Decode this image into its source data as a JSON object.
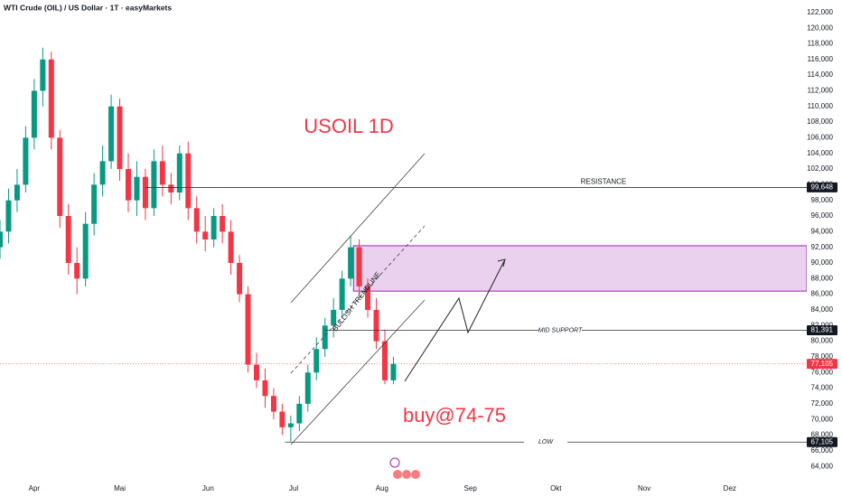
{
  "chart_data": {
    "type": "candlestick",
    "header": "WTI Crude (OIL) / US Dollar · 1T · easyMarkets",
    "annotations": [
      "USOIL 1D",
      "buy@74-75",
      "BULLISH TRENDLINE"
    ],
    "up_color": "#089981",
    "down_color": "#f23645",
    "x": [
      79,
      82,
      85,
      88,
      91,
      94,
      97,
      100,
      103,
      106,
      109,
      112,
      115,
      118,
      121,
      124,
      127,
      130,
      133,
      136,
      139,
      142,
      145,
      148,
      151,
      154,
      157,
      160,
      163,
      166,
      169,
      172,
      175,
      178,
      181,
      184,
      187,
      190,
      193,
      196,
      199,
      202,
      205,
      208,
      211,
      214,
      217
    ],
    "open": [
      92000,
      94000,
      98000,
      100000,
      106000,
      112000,
      116000,
      106000,
      96000,
      90000,
      88000,
      95000,
      100000,
      103000,
      110000,
      102000,
      98000,
      101000,
      97000,
      103000,
      100000,
      99000,
      104000,
      97000,
      94000,
      93000,
      96000,
      94000,
      90000,
      86000,
      77000,
      75000,
      73000,
      71000,
      69000,
      69500,
      72000,
      76000,
      79000,
      82000,
      84000,
      88000,
      92000,
      87000,
      84000,
      80000,
      75000
    ],
    "high": [
      95500,
      99500,
      102000,
      107500,
      113500,
      117500,
      117000,
      107000,
      97500,
      92000,
      96500,
      101500,
      105000,
      111500,
      111000,
      104000,
      103000,
      102000,
      104500,
      105000,
      101500,
      105000,
      105500,
      98500,
      96000,
      97000,
      97500,
      95500,
      91000,
      87000,
      78500,
      76500,
      74000,
      72000,
      70500,
      73000,
      77000,
      80500,
      83000,
      85500,
      89000,
      93500,
      93000,
      88000,
      85500,
      81500,
      78000
    ],
    "low": [
      90500,
      92500,
      96500,
      99000,
      104500,
      110000,
      104500,
      94500,
      88500,
      86000,
      87000,
      93500,
      98500,
      102000,
      100500,
      96500,
      96000,
      95500,
      96000,
      98500,
      97500,
      98000,
      95500,
      92500,
      91500,
      92000,
      92500,
      88500,
      85000,
      76000,
      74000,
      71500,
      70000,
      68000,
      67200,
      68500,
      71000,
      75000,
      78000,
      80500,
      83000,
      87000,
      86000,
      83000,
      79000,
      74500,
      74500
    ],
    "close": [
      94000,
      98000,
      100000,
      106000,
      112000,
      116000,
      106000,
      96000,
      90000,
      88000,
      95000,
      100000,
      103000,
      110000,
      102000,
      98000,
      101000,
      97000,
      103000,
      100000,
      99000,
      104000,
      97000,
      94000,
      93000,
      96000,
      94000,
      90000,
      86000,
      77000,
      75000,
      73000,
      71000,
      69000,
      69500,
      72000,
      76000,
      79000,
      82000,
      84000,
      88000,
      92000,
      87000,
      84000,
      80000,
      75000,
      77105
    ],
    "last_price": {
      "value": 77105,
      "label": "77,105",
      "color": "#f23645"
    },
    "levels": [
      {
        "name": "RESISTANCE",
        "value": 99648,
        "label": "99,648",
        "from_x": 130
      },
      {
        "name": "MID SUPPORT",
        "value": 81391,
        "label": "81,391",
        "from_x": 193
      },
      {
        "name": "LOW",
        "value": 67105,
        "label": "67,105",
        "from_x": 179
      }
    ],
    "zone": {
      "low": 86400,
      "high": 92200,
      "from_x": 203,
      "color": "#e1bee7"
    },
    "xlim": [
      79,
      362
    ],
    "xticks": [
      {
        "value": 91,
        "label": "Apr"
      },
      {
        "value": 121,
        "label": "Mai"
      },
      {
        "value": 152,
        "label": "Jun"
      },
      {
        "value": 182,
        "label": "Jul"
      },
      {
        "value": 213,
        "label": "Aug"
      },
      {
        "value": 244,
        "label": "Sep"
      },
      {
        "value": 274,
        "label": "Okt"
      },
      {
        "value": 305,
        "label": "Nov"
      },
      {
        "value": 335,
        "label": "Dez"
      }
    ],
    "ylim": [
      62400,
      123600
    ],
    "yticks": [
      {
        "value": 64000,
        "label": "64,000"
      },
      {
        "value": 66000,
        "label": "66,000"
      },
      {
        "value": 68000,
        "label": "68,000"
      },
      {
        "value": 70000,
        "label": "70,000"
      },
      {
        "value": 72000,
        "label": "72,000"
      },
      {
        "value": 74000,
        "label": "74,000"
      },
      {
        "value": 76000,
        "label": "76,000"
      },
      {
        "value": 78000,
        "label": "78,000"
      },
      {
        "value": 80000,
        "label": "80,000"
      },
      {
        "value": 82000,
        "label": "82,000"
      },
      {
        "value": 84000,
        "label": "84,000"
      },
      {
        "value": 86000,
        "label": "86,000"
      },
      {
        "value": 88000,
        "label": "88,000"
      },
      {
        "value": 90000,
        "label": "90,000"
      },
      {
        "value": 92000,
        "label": "92,000"
      },
      {
        "value": 94000,
        "label": "94,000"
      },
      {
        "value": 96000,
        "label": "96,000"
      },
      {
        "value": 98000,
        "label": "98,000"
      },
      {
        "value": 100000,
        "label": "100,000"
      },
      {
        "value": 102000,
        "label": "102,000"
      },
      {
        "value": 104000,
        "label": "104,000"
      },
      {
        "value": 106000,
        "label": "106,000"
      },
      {
        "value": 108000,
        "label": "108,000"
      },
      {
        "value": 110000,
        "label": "110,000"
      },
      {
        "value": 112000,
        "label": "112,000"
      },
      {
        "value": 114000,
        "label": "114,000"
      },
      {
        "value": 116000,
        "label": "116,000"
      },
      {
        "value": 118000,
        "label": "118,000"
      },
      {
        "value": 120000,
        "label": "120,000"
      },
      {
        "value": 122000,
        "label": "122,000"
      }
    ],
    "grid": false
  }
}
